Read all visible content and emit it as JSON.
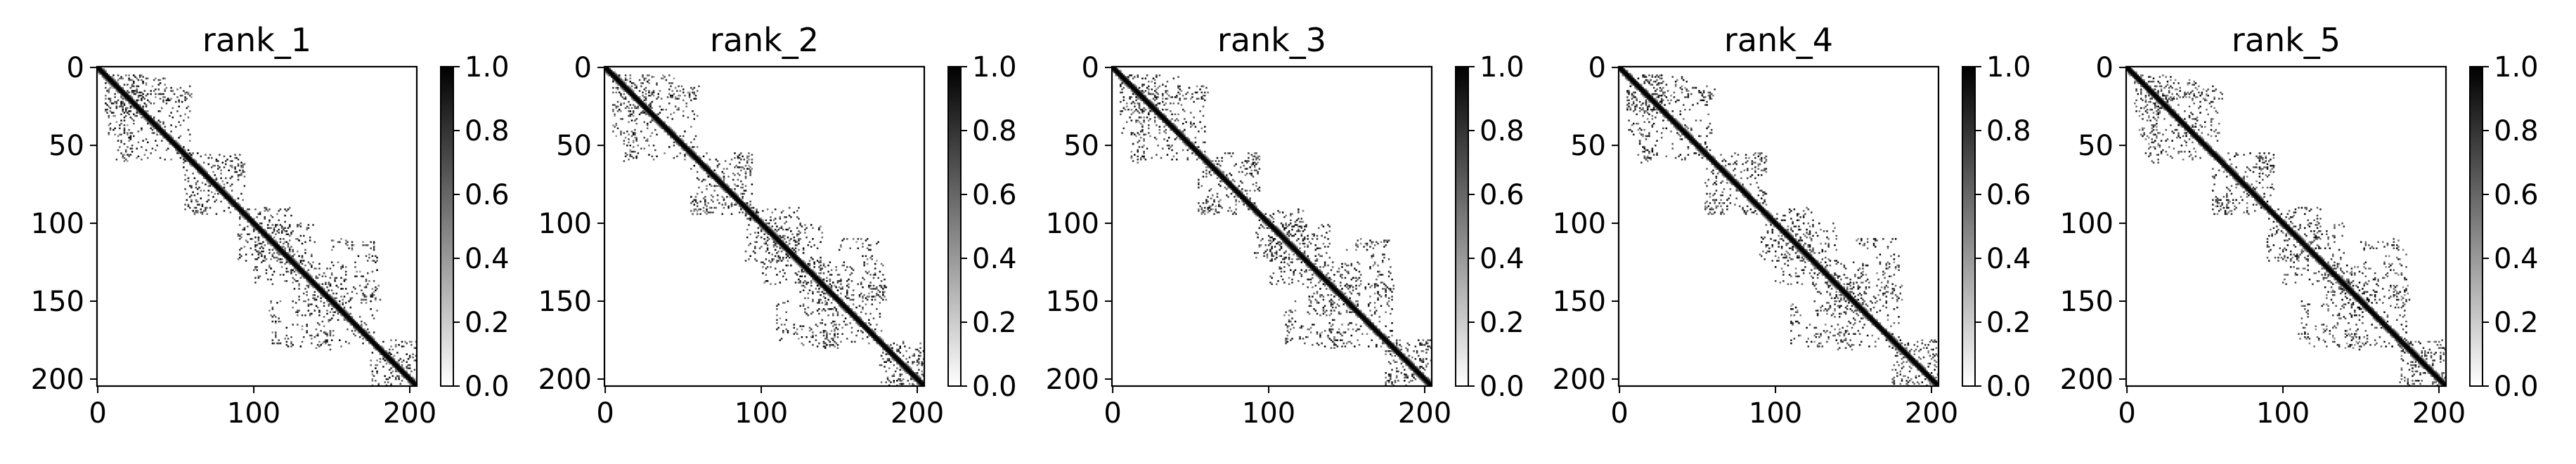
{
  "chart_data": {
    "type": "heatmap",
    "colormap": [
      "#ffffff",
      "#000000"
    ],
    "shape": [
      205,
      205
    ],
    "panels": [
      {
        "title": "rank_1",
        "xlabel": "",
        "ylabel": ""
      },
      {
        "title": "rank_2",
        "xlabel": "",
        "ylabel": ""
      },
      {
        "title": "rank_3",
        "xlabel": "",
        "ylabel": ""
      },
      {
        "title": "rank_4",
        "xlabel": "",
        "ylabel": ""
      },
      {
        "title": "rank_5",
        "xlabel": "",
        "ylabel": ""
      }
    ],
    "x_ticks": [
      "0",
      "100",
      "200"
    ],
    "y_ticks": [
      "0",
      "50",
      "100",
      "150",
      "200"
    ],
    "colorbar_ticks": [
      [
        "0.0",
        "0.2",
        "0.4",
        "0.6",
        "0.8",
        "1.0"
      ],
      [
        "0.0",
        "0.2",
        "0.4",
        "0.6",
        "0.8",
        "1.0"
      ],
      [
        "0.0",
        "0.2",
        "0.4",
        "0.6",
        "0.8",
        "1.0"
      ],
      [
        "0.0",
        "0.2",
        "0.4",
        "0.6",
        "0.8",
        "1.0"
      ],
      [
        "0.0",
        "0.2",
        "0.4",
        "0.6",
        "0.8",
        "1.0"
      ]
    ],
    "x_tick_values": [
      0,
      100,
      200
    ],
    "y_tick_values": [
      0,
      50,
      100,
      150,
      200
    ],
    "colorbar_tick_values": [
      0.0,
      0.2,
      0.4,
      0.6,
      0.8,
      1.0
    ],
    "zlim": [
      0,
      1
    ],
    "diagonal_band": {
      "value": 1.0
    },
    "blocks": [
      {
        "r": [
          5,
          30
        ],
        "c": [
          5,
          30
        ]
      },
      {
        "r": [
          15,
          60
        ],
        "c": [
          15,
          60
        ]
      },
      {
        "r": [
          55,
          95
        ],
        "c": [
          55,
          95
        ]
      },
      {
        "r": [
          90,
          125
        ],
        "c": [
          90,
          125
        ]
      },
      {
        "r": [
          100,
          140
        ],
        "c": [
          100,
          140
        ]
      },
      {
        "r": [
          125,
          160
        ],
        "c": [
          125,
          160
        ]
      },
      {
        "r": [
          135,
          180
        ],
        "c": [
          135,
          180
        ]
      },
      {
        "r": [
          175,
          205
        ],
        "c": [
          175,
          205
        ]
      }
    ],
    "off_diagonal_clusters": [
      {
        "r": [
          12,
          22
        ],
        "c": [
          42,
          62
        ]
      },
      {
        "r": [
          30,
          45
        ],
        "c": [
          5,
          20
        ]
      },
      {
        "r": [
          55,
          70
        ],
        "c": [
          85,
          95
        ]
      },
      {
        "r": [
          110,
          118
        ],
        "c": [
          150,
          178
        ]
      },
      {
        "r": [
          140,
          150
        ],
        "c": [
          168,
          182
        ]
      },
      {
        "r": [
          165,
          180
        ],
        "c": [
          120,
          135
        ]
      }
    ]
  }
}
